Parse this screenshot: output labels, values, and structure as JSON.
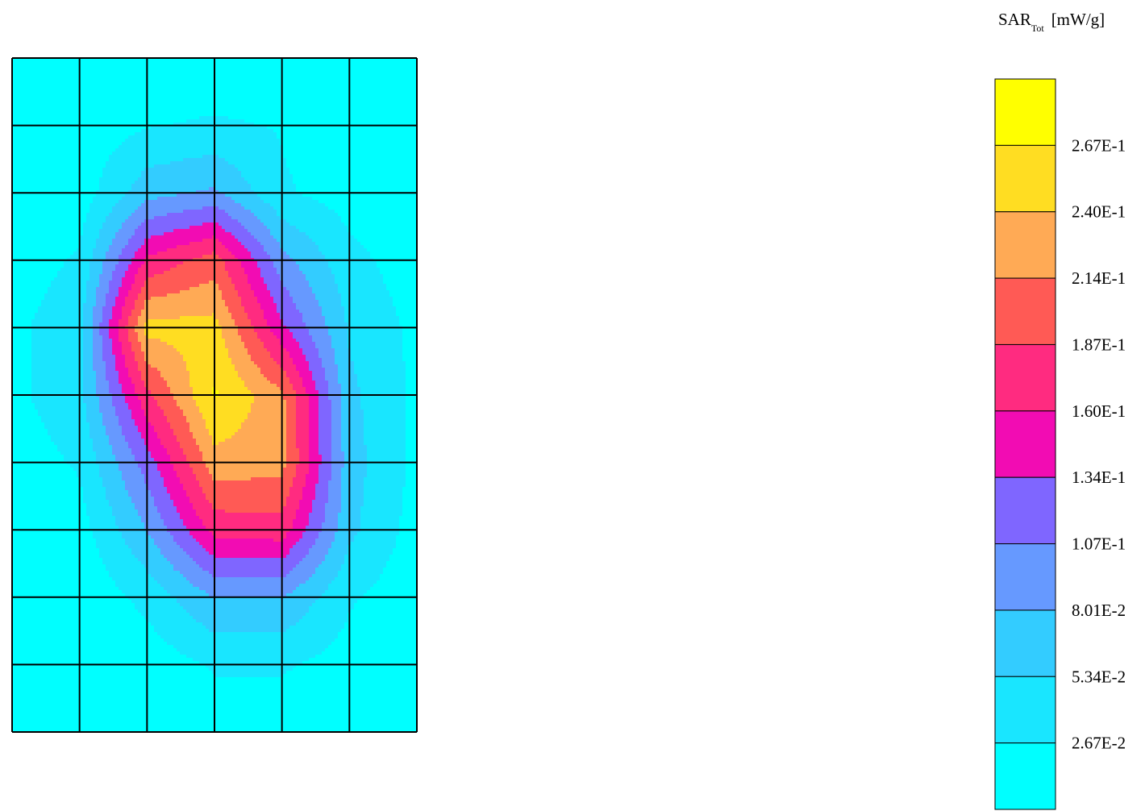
{
  "chart_data": {
    "type": "heatmap",
    "title": "",
    "colorbar": {
      "title_main": "SAR",
      "title_sub": "Tot",
      "title_unit": "[mW/g]",
      "tick_labels": [
        "2.67E-1",
        "2.40E-1",
        "2.14E-1",
        "1.87E-1",
        "1.60E-1",
        "1.34E-1",
        "1.07E-1",
        "8.01E-2",
        "5.34E-2",
        "2.67E-2"
      ],
      "levels": [
        0.0267,
        0.0534,
        0.0801,
        0.107,
        0.134,
        0.16,
        0.187,
        0.214,
        0.24,
        0.267
      ],
      "colors": [
        "#00ffff",
        "#19e6ff",
        "#33ccff",
        "#6699ff",
        "#7f66ff",
        "#f20cb3",
        "#ff2b80",
        "#ff5a55",
        "#ffaa55",
        "#ffdd22",
        "#ffff00"
      ]
    },
    "grid": {
      "columns": 6,
      "rows": 10
    },
    "values": [
      [
        0.01,
        0.01,
        0.01,
        0.01,
        0.01,
        0.01,
        0.01
      ],
      [
        0.01,
        0.01,
        0.025,
        0.03,
        0.025,
        0.01,
        0.01
      ],
      [
        0.01,
        0.012,
        0.07,
        0.085,
        0.03,
        0.015,
        0.01
      ],
      [
        0.012,
        0.03,
        0.165,
        0.2,
        0.09,
        0.035,
        0.012
      ],
      [
        0.02,
        0.045,
        0.25,
        0.25,
        0.14,
        0.05,
        0.02
      ],
      [
        0.02,
        0.045,
        0.18,
        0.27,
        0.22,
        0.06,
        0.02
      ],
      [
        0.012,
        0.03,
        0.12,
        0.23,
        0.225,
        0.065,
        0.02
      ],
      [
        0.01,
        0.015,
        0.08,
        0.17,
        0.175,
        0.06,
        0.015
      ],
      [
        0.005,
        0.005,
        0.035,
        0.08,
        0.08,
        0.03,
        0.01
      ],
      [
        0.005,
        0.005,
        0.01,
        0.03,
        0.03,
        0.015,
        0.005
      ],
      [
        0.005,
        0.005,
        0.005,
        0.01,
        0.01,
        0.01,
        0.005
      ]
    ]
  }
}
